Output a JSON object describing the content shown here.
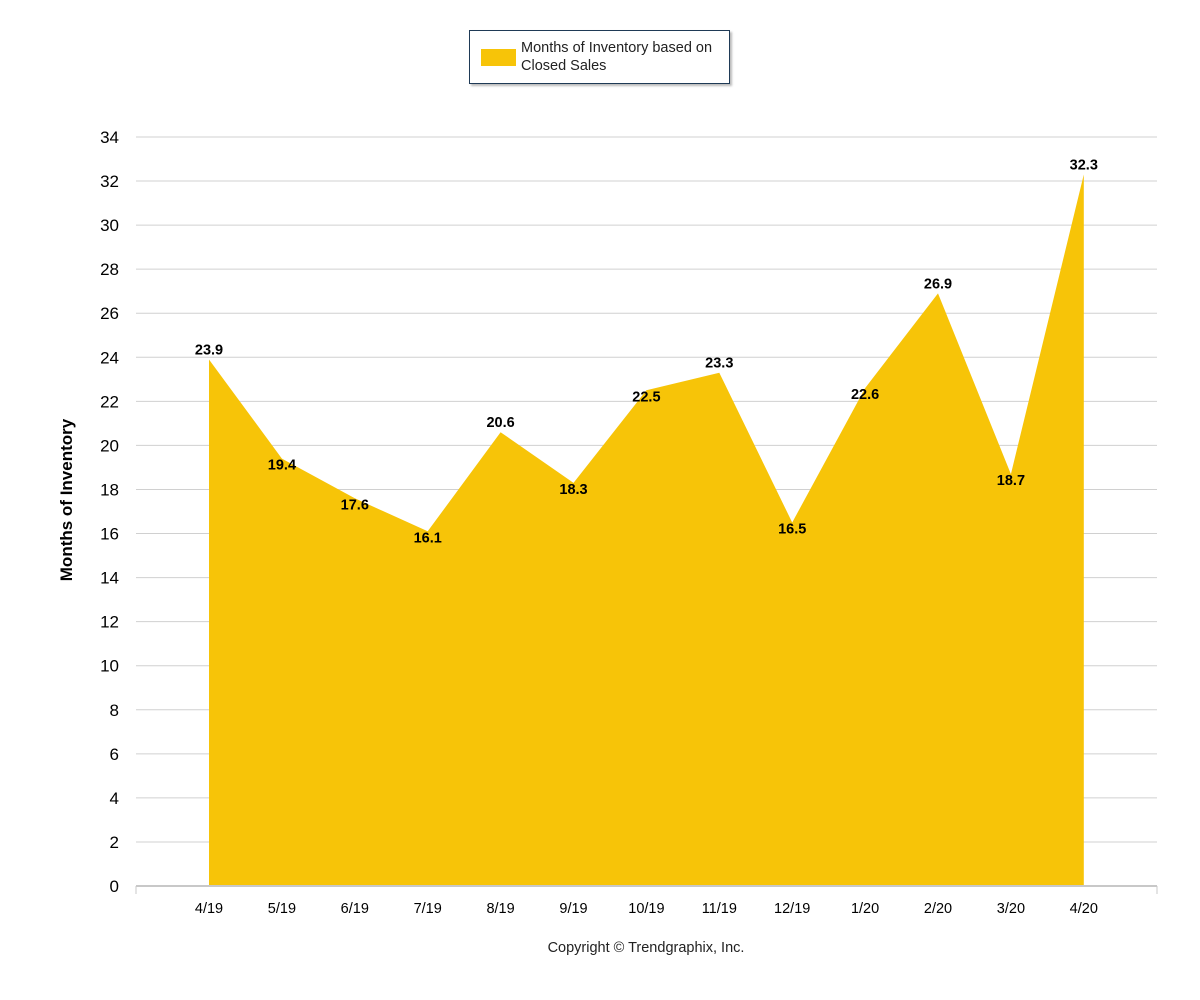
{
  "legend": {
    "label": "Months of Inventory based on Closed Sales"
  },
  "footer": {
    "copyright": "Copyright © Trendgraphix, Inc."
  },
  "colors": {
    "area": "#F7C408",
    "grid": "#d0d0d0",
    "axis": "#c8c8c8"
  },
  "chart_data": {
    "type": "area",
    "categories": [
      "4/19",
      "5/19",
      "6/19",
      "7/19",
      "8/19",
      "9/19",
      "10/19",
      "11/19",
      "12/19",
      "1/20",
      "2/20",
      "3/20",
      "4/20"
    ],
    "series": [
      {
        "name": "Months of Inventory based on Closed Sales",
        "values": [
          23.9,
          19.4,
          17.6,
          16.1,
          20.6,
          18.3,
          22.5,
          23.3,
          16.5,
          22.6,
          26.9,
          18.7,
          32.3
        ]
      }
    ],
    "ylabel": "Months of Inventory",
    "xlabel": "",
    "ylim": [
      0,
      34
    ],
    "yticks": [
      0,
      2,
      4,
      6,
      8,
      10,
      12,
      14,
      16,
      18,
      20,
      22,
      24,
      26,
      28,
      30,
      32,
      34
    ],
    "grid": true,
    "data_labels": true,
    "legend_position": "top-center"
  }
}
